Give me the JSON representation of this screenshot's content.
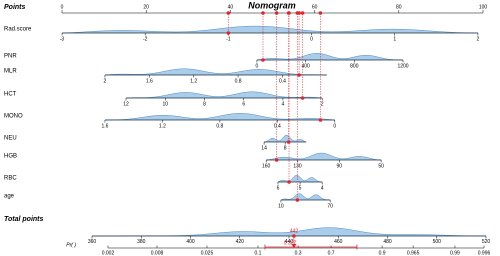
{
  "chart_data": {
    "type": "nomogram",
    "title": "Nomogram",
    "points_label": "Points",
    "points_axis": {
      "xlim": [
        0,
        100
      ],
      "xticks": [
        0,
        20,
        40,
        60,
        80,
        100
      ]
    },
    "variables": [
      {
        "name": "Rad.score",
        "xlim": [
          -3,
          2
        ],
        "points": [
          0,
          98.8
        ],
        "xticks": [
          -3,
          -2,
          -1,
          0,
          1,
          2
        ],
        "marker": -1
      },
      {
        "name": "PNR",
        "xlim": [
          0,
          1200
        ],
        "points": [
          46.3,
          81.0
        ],
        "xticks": [
          0,
          400,
          800,
          1200
        ],
        "marker": 50
      },
      {
        "name": "MLR",
        "xlim": [
          2,
          0
        ],
        "points": [
          10.2,
          62.9
        ],
        "xticks": [
          2,
          1.6,
          1.2,
          0.8,
          0.4
        ],
        "marker": 0.25
      },
      {
        "name": "HCT",
        "xlim": [
          12,
          2
        ],
        "points": [
          15.2,
          61.8
        ],
        "xticks": [
          12,
          10,
          8,
          6,
          4,
          2
        ],
        "marker": 3
      },
      {
        "name": "MONO",
        "xlim": [
          1.6,
          0
        ],
        "points": [
          10.2,
          64.8
        ],
        "xticks": [
          1.6,
          1.2,
          0.8,
          0.4,
          0
        ],
        "marker": 0.1
      },
      {
        "name": "NEU",
        "xlim": [
          14,
          2
        ],
        "points": [
          48.0,
          58.0
        ],
        "xticks": [
          14,
          8
        ],
        "marker": 7
      },
      {
        "name": "HGB",
        "xlim": [
          160,
          50
        ],
        "points": [
          48.5,
          75.8
        ],
        "xticks": [
          160,
          130,
          90,
          50
        ],
        "marker": 150
      },
      {
        "name": "RBC",
        "xlim": [
          6,
          4
        ],
        "points": [
          51.3,
          61.8
        ],
        "xticks": [
          6,
          5,
          4
        ],
        "marker": 5.5
      },
      {
        "name": "age",
        "xlim": [
          10,
          70
        ],
        "points": [
          52.0,
          63.7
        ],
        "xticks": [
          10,
          70
        ],
        "marker": 30
      }
    ],
    "total_label": "Total points",
    "total_axis": {
      "xlim": [
        360,
        520
      ],
      "xticks": [
        360,
        380,
        400,
        420,
        440,
        460,
        480,
        500,
        520
      ],
      "marker": 442
    },
    "pr_label": "Pr( )",
    "pr_axis": {
      "ticks": [
        0.002,
        0.008,
        0.025,
        0.1,
        0.3,
        0.7,
        0.9,
        0.965,
        0.99,
        0.996
      ],
      "total_points": [
        366.5,
        386.4,
        406.7,
        427.4,
        443.7,
        457.1,
        477.8,
        490.4,
        507.4,
        519.2
      ],
      "marker": 0.327,
      "marker_total": 442
    }
  }
}
